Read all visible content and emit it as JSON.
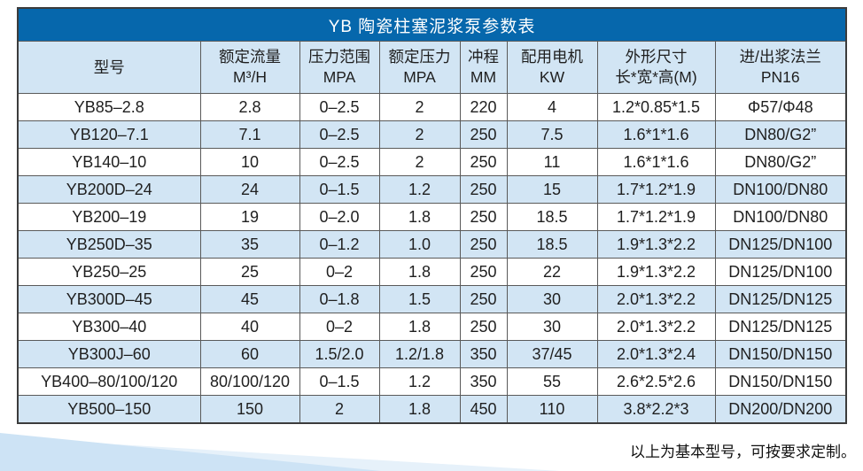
{
  "table": {
    "title": "YB 陶瓷柱塞泥浆泵参数表",
    "columns": [
      {
        "line1": "型号",
        "line2": ""
      },
      {
        "line1": "额定流量",
        "line2": "M³/H"
      },
      {
        "line1": "压力范围",
        "line2": "MPA"
      },
      {
        "line1": "额定压力",
        "line2": "MPA"
      },
      {
        "line1": "冲程",
        "line2": "MM"
      },
      {
        "line1": "配用电机",
        "line2": "KW"
      },
      {
        "line1": "外形尺寸",
        "line2": "长*宽*高(M)"
      },
      {
        "line1": "进/出浆法兰",
        "line2": "PN16"
      }
    ],
    "rows": [
      [
        "YB85–2.8",
        "2.8",
        "0–2.5",
        "2",
        "220",
        "4",
        "1.2*0.85*1.5",
        "Φ57/Φ48"
      ],
      [
        "YB120–7.1",
        "7.1",
        "0–2.5",
        "2",
        "250",
        "7.5",
        "1.6*1*1.6",
        "DN80/G2”"
      ],
      [
        "YB140–10",
        "10",
        "0–2.5",
        "2",
        "250",
        "11",
        "1.6*1*1.6",
        "DN80/G2”"
      ],
      [
        "YB200D–24",
        "24",
        "0–1.5",
        "1.2",
        "250",
        "15",
        "1.7*1.2*1.9",
        "DN100/DN80"
      ],
      [
        "YB200–19",
        "19",
        "0–2.0",
        "1.8",
        "250",
        "18.5",
        "1.7*1.2*1.9",
        "DN100/DN80"
      ],
      [
        "YB250D–35",
        "35",
        "0–1.2",
        "1.0",
        "250",
        "18.5",
        "1.9*1.3*2.2",
        "DN125/DN100"
      ],
      [
        "YB250–25",
        "25",
        "0–2",
        "1.8",
        "250",
        "22",
        "1.9*1.3*2.2",
        "DN125/DN100"
      ],
      [
        "YB300D–45",
        "45",
        "0–1.8",
        "1.5",
        "250",
        "30",
        "2.0*1.3*2.2",
        "DN125/DN125"
      ],
      [
        "YB300–40",
        "40",
        "0–2",
        "1.8",
        "250",
        "30",
        "2.0*1.3*2.2",
        "DN125/DN125"
      ],
      [
        "YB300J–60",
        "60",
        "1.5/2.0",
        "1.2/1.8",
        "350",
        "37/45",
        "2.0*1.3*2.4",
        "DN150/DN150"
      ],
      [
        "YB400–80/100/120",
        "80/100/120",
        "0–1.5",
        "1.2",
        "350",
        "55",
        "2.6*2.5*2.6",
        "DN150/DN150"
      ],
      [
        "YB500–150",
        "150",
        "2",
        "1.8",
        "450",
        "110",
        "3.8*2.2*3",
        "DN200/DN200"
      ]
    ]
  },
  "footnote": "以上为基本型号，可按要求定制。",
  "colors": {
    "title_bar": "#0667ac",
    "row_alt": "#d2e5f4",
    "header_bg": "#d2e5f4",
    "border_outer": "#3c3c3c",
    "border_inner": "#5a5a5a",
    "wedge": "#cde3f5",
    "wedge_light": "#e6f1fa"
  }
}
